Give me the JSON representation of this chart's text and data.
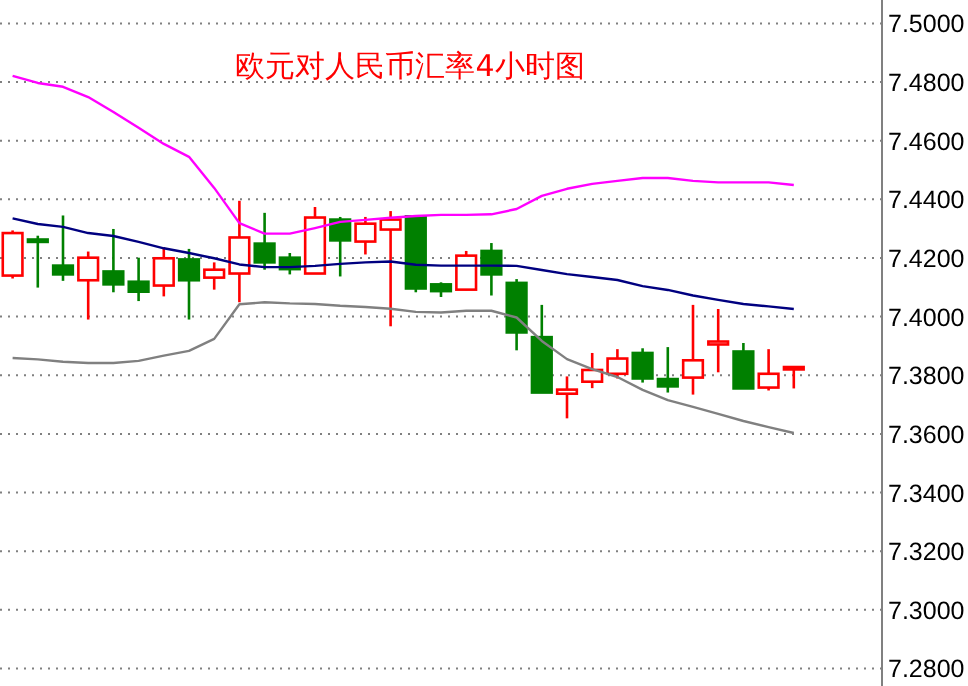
{
  "chart_data": {
    "type": "candlestick",
    "title": "欧元对人民币汇率4小时图",
    "categories": [
      null,
      null,
      null,
      null,
      null,
      null,
      null,
      null,
      null,
      null,
      null,
      null,
      null,
      null,
      null,
      null,
      null,
      null,
      null,
      null,
      null,
      null,
      null,
      null,
      null,
      null,
      null,
      null,
      null,
      null,
      null,
      null
    ],
    "ohlc": [
      [
        7.414,
        7.4294,
        7.413,
        7.4285
      ],
      [
        7.4263,
        7.4276,
        7.4099,
        7.4256
      ],
      [
        7.4174,
        7.4345,
        7.4122,
        7.4144
      ],
      [
        7.4124,
        7.4222,
        7.399,
        7.4201
      ],
      [
        7.4154,
        7.4299,
        7.4083,
        7.411
      ],
      [
        7.4119,
        7.4201,
        7.4053,
        7.4085
      ],
      [
        7.4106,
        7.4236,
        7.4069,
        7.4199
      ],
      [
        7.4195,
        7.4231,
        7.399,
        7.4124
      ],
      [
        7.4133,
        7.4185,
        7.4092,
        7.416
      ],
      [
        7.4147,
        7.4395,
        7.4049,
        7.427
      ],
      [
        7.4249,
        7.4354,
        7.416,
        7.4185
      ],
      [
        7.4201,
        7.4217,
        7.4144,
        7.4162
      ],
      [
        7.4147,
        7.4374,
        7.4147,
        7.4338
      ],
      [
        7.4331,
        7.434,
        7.4137,
        7.426
      ],
      [
        7.4256,
        7.434,
        7.4212,
        7.4317
      ],
      [
        7.4297,
        7.436,
        7.3967,
        7.4331
      ],
      [
        7.4342,
        7.4345,
        7.4083,
        7.4096
      ],
      [
        7.411,
        7.4117,
        7.4067,
        7.4087
      ],
      [
        7.4092,
        7.4224,
        7.409,
        7.4208
      ],
      [
        7.4224,
        7.4251,
        7.4072,
        7.4144
      ],
      [
        7.4115,
        7.4128,
        7.3885,
        7.3946
      ],
      [
        7.393,
        7.404,
        7.3741,
        7.3741
      ],
      [
        7.3737,
        7.3796,
        7.3653,
        7.3751
      ],
      [
        7.3778,
        7.3876,
        7.3756,
        7.3818
      ],
      [
        7.3805,
        7.3889,
        7.3789,
        7.3857
      ],
      [
        7.3876,
        7.3892,
        7.3775,
        7.3789
      ],
      [
        7.3787,
        7.3896,
        7.3741,
        7.3762
      ],
      [
        7.3792,
        7.404,
        7.3734,
        7.3851
      ],
      [
        7.3905,
        7.4026,
        7.381,
        7.3915
      ],
      [
        7.3881,
        7.391,
        7.3755,
        7.3755
      ],
      [
        7.3758,
        7.3889,
        7.3748,
        7.3805
      ],
      [
        7.3828,
        7.383,
        7.3755,
        7.3828
      ]
    ],
    "colors": [
      "#ff0000",
      "#008000",
      "#008000",
      "#ff0000",
      "#008000",
      "#008000",
      "#ff0000",
      "#008000",
      "#ff0000",
      "#ff0000",
      "#008000",
      "#008000",
      "#ff0000",
      "#008000",
      "#ff0000",
      "#ff0000",
      "#008000",
      "#008000",
      "#ff0000",
      "#008000",
      "#008000",
      "#008000",
      "#ff0000",
      "#ff0000",
      "#ff0000",
      "#008000",
      "#008000",
      "#ff0000",
      "#ff0000",
      "#008000",
      "#ff0000",
      "#ff0000"
    ],
    "series": [
      {
        "type": "line",
        "color": "#ff00ff",
        "values": [
          7.4821,
          7.4797,
          7.4784,
          7.4749,
          7.4698,
          7.4644,
          7.4589,
          7.4545,
          7.4439,
          7.4319,
          7.4283,
          7.4283,
          7.4302,
          7.4323,
          7.433,
          7.4337,
          7.4343,
          7.4347,
          7.4347,
          7.4349,
          7.4367,
          7.4412,
          7.4436,
          7.4453,
          7.4463,
          7.4473,
          7.4473,
          7.4463,
          7.4458,
          7.4458,
          7.4458,
          7.4449
        ]
      },
      {
        "type": "line",
        "color": "#000080",
        "values": [
          7.4335,
          7.4316,
          7.4306,
          7.4285,
          7.4275,
          7.4255,
          7.4233,
          7.4217,
          7.4199,
          7.4178,
          7.4169,
          7.4169,
          7.4173,
          7.418,
          7.4185,
          7.4188,
          7.4177,
          7.4174,
          7.4174,
          7.4174,
          7.4173,
          7.4159,
          7.4145,
          7.4135,
          7.4125,
          7.4104,
          7.4091,
          7.4072,
          7.4057,
          7.4043,
          7.4035,
          7.4026
        ]
      },
      {
        "type": "line",
        "color": "#808080",
        "values": [
          7.3859,
          7.3854,
          7.3846,
          7.3842,
          7.3842,
          7.3849,
          7.3867,
          7.3883,
          7.3924,
          7.4042,
          7.4049,
          7.4045,
          7.4043,
          7.4037,
          7.4033,
          7.4027,
          7.4016,
          7.4014,
          7.402,
          7.402,
          7.3997,
          7.3917,
          7.3855,
          7.3821,
          7.3794,
          7.375,
          7.3715,
          7.3692,
          7.3668,
          7.3644,
          7.3623,
          7.3603
        ]
      }
    ],
    "ylim": [
      7.274,
      7.508
    ],
    "yticks": [
      {
        "value": 7.28,
        "label": "7.2800"
      },
      {
        "value": 7.3,
        "label": "7.3000"
      },
      {
        "value": 7.32,
        "label": "7.3200"
      },
      {
        "value": 7.34,
        "label": "7.3400"
      },
      {
        "value": 7.36,
        "label": "7.3600"
      },
      {
        "value": 7.38,
        "label": "7.3800"
      },
      {
        "value": 7.4,
        "label": "7.4000"
      },
      {
        "value": 7.42,
        "label": "7.4200"
      },
      {
        "value": 7.44,
        "label": "7.4400"
      },
      {
        "value": 7.46,
        "label": "7.4600"
      },
      {
        "value": 7.48,
        "label": "7.4800"
      },
      {
        "value": 7.5,
        "label": "7.5000"
      }
    ],
    "grid": "y"
  }
}
